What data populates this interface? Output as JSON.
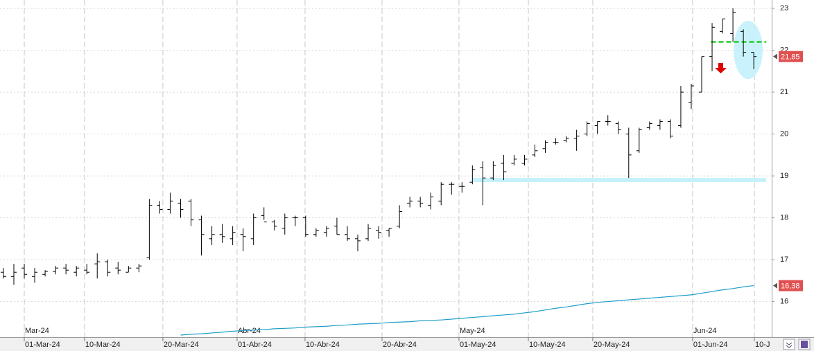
{
  "chart_data": {
    "type": "ohlc",
    "xlim": [
      -0.33,
      73.72
    ],
    "ylim": [
      15.15,
      23.2
    ],
    "yticks": [
      16,
      17,
      18,
      19,
      20,
      21,
      22,
      23
    ],
    "xticks": [
      {
        "value": 2.0,
        "label": "01-Mar-24"
      },
      {
        "value": 7.78,
        "label": "10-Mar-24"
      },
      {
        "value": 15.3,
        "label": "20-Mar-24"
      },
      {
        "value": 22.42,
        "label": "01-Abr-24"
      },
      {
        "value": 28.94,
        "label": "10-Abr-24"
      },
      {
        "value": 36.33,
        "label": "20-Abr-24"
      },
      {
        "value": 43.71,
        "label": "01-May-24"
      },
      {
        "value": 50.37,
        "label": "10-May-24"
      },
      {
        "value": 56.55,
        "label": "20-May-24"
      },
      {
        "value": 66.13,
        "label": "01-Jun-24"
      },
      {
        "value": 72.06,
        "label": "10-J"
      }
    ],
    "month_labels": [
      {
        "value": 2.0,
        "label": "Mar-24"
      },
      {
        "value": 22.42,
        "label": "Abr-24"
      },
      {
        "value": 43.71,
        "label": "May-24"
      },
      {
        "value": 66.13,
        "label": "Jun-24"
      }
    ],
    "grid": true,
    "color": "#000000",
    "ohlc": {
      "open": [
        16.7,
        16.6,
        16.8,
        16.6,
        16.65,
        16.72,
        16.8,
        16.7,
        16.75,
        16.9,
        16.95,
        16.8,
        16.7,
        16.8,
        17.05,
        18.3,
        18.2,
        18.35,
        18.4,
        17.95,
        17.5,
        17.6,
        17.5,
        17.6,
        17.5,
        18.05,
        17.9,
        17.75,
        18.0,
        18.0,
        17.6,
        17.65,
        17.8,
        17.6,
        17.5,
        17.5,
        17.7,
        17.7,
        17.8,
        18.35,
        18.4,
        18.3,
        18.4,
        18.8,
        18.75,
        18.85,
        19.2,
        18.95,
        19.3,
        19.3,
        19.3,
        19.5,
        19.65,
        19.8,
        19.85,
        19.9,
        20.0,
        20.2,
        20.3,
        20.25,
        20.0,
        19.6,
        20.15,
        20.2,
        20.3,
        20.2,
        20.75,
        21.0,
        21.85,
        22.45,
        22.4,
        22.45,
        21.95
      ],
      "high": [
        16.8,
        16.9,
        16.9,
        16.8,
        16.75,
        16.85,
        16.9,
        16.85,
        16.9,
        17.15,
        17.0,
        16.95,
        16.85,
        16.9,
        18.45,
        18.4,
        18.6,
        18.45,
        18.45,
        18.05,
        17.8,
        17.85,
        17.8,
        17.75,
        18.1,
        18.25,
        17.95,
        18.1,
        18.05,
        18.05,
        17.75,
        17.8,
        18.0,
        17.8,
        17.6,
        17.85,
        17.8,
        17.75,
        18.3,
        18.5,
        18.5,
        18.6,
        18.85,
        18.85,
        18.85,
        19.25,
        19.35,
        19.35,
        19.5,
        19.5,
        19.5,
        19.75,
        19.85,
        19.9,
        19.95,
        20.1,
        20.3,
        20.3,
        20.45,
        20.3,
        20.15,
        20.15,
        20.3,
        20.35,
        20.35,
        21.15,
        21.2,
        21.85,
        22.65,
        22.75,
        23.0,
        22.5,
        21.95
      ],
      "low": [
        16.55,
        16.4,
        16.55,
        16.45,
        16.6,
        16.65,
        16.65,
        16.6,
        16.65,
        16.55,
        16.6,
        16.65,
        16.7,
        16.7,
        17.0,
        18.1,
        18.1,
        18.0,
        17.8,
        17.1,
        17.35,
        17.4,
        17.35,
        17.2,
        17.35,
        17.95,
        17.7,
        17.6,
        17.8,
        17.55,
        17.55,
        17.55,
        17.6,
        17.45,
        17.2,
        17.45,
        17.5,
        17.55,
        17.75,
        18.25,
        18.25,
        18.2,
        18.3,
        18.55,
        18.6,
        18.8,
        18.3,
        18.9,
        18.9,
        19.25,
        19.25,
        19.45,
        19.55,
        19.75,
        19.8,
        19.6,
        19.95,
        20.0,
        20.2,
        20.0,
        18.95,
        19.55,
        20.1,
        20.1,
        19.9,
        20.15,
        20.6,
        21.0,
        21.5,
        22.4,
        22.2,
        21.85,
        21.55
      ],
      "close": [
        16.6,
        16.7,
        16.65,
        16.7,
        16.72,
        16.8,
        16.75,
        16.8,
        16.7,
        16.95,
        16.7,
        16.75,
        16.8,
        16.85,
        18.3,
        18.2,
        18.4,
        18.2,
        17.95,
        17.6,
        17.6,
        17.55,
        17.65,
        17.55,
        18.0,
        17.9,
        17.8,
        18.0,
        18.0,
        17.6,
        17.7,
        17.75,
        17.6,
        17.5,
        17.45,
        17.75,
        17.65,
        17.75,
        18.15,
        18.4,
        18.35,
        18.5,
        18.8,
        18.8,
        18.75,
        19.15,
        18.95,
        19.25,
        19.1,
        19.4,
        19.4,
        19.6,
        19.8,
        19.8,
        19.9,
        19.95,
        20.25,
        20.3,
        20.3,
        20.1,
        19.5,
        20.1,
        20.25,
        20.3,
        19.95,
        21.0,
        21.15,
        21.85,
        22.55,
        22.75,
        22.9,
        21.95,
        21.85
      ]
    },
    "series": [
      {
        "color": "#1e9ec8",
        "values": [
          null,
          null,
          null,
          null,
          null,
          null,
          null,
          null,
          null,
          null,
          null,
          null,
          null,
          null,
          null,
          null,
          null,
          15.2,
          15.22,
          15.23,
          15.25,
          15.27,
          15.29,
          15.31,
          15.32,
          15.33,
          15.35,
          15.36,
          15.37,
          15.39,
          15.4,
          15.41,
          15.43,
          15.44,
          15.46,
          15.47,
          15.48,
          15.5,
          15.51,
          15.52,
          15.54,
          15.55,
          15.56,
          15.58,
          15.6,
          15.62,
          15.64,
          15.66,
          15.68,
          15.7,
          15.73,
          15.76,
          15.8,
          15.84,
          15.87,
          15.91,
          15.95,
          15.98,
          16.0,
          16.02,
          16.04,
          16.06,
          16.08,
          16.1,
          16.12,
          16.14,
          16.16,
          16.2,
          16.24,
          16.28,
          16.31,
          16.35,
          16.38
        ]
      }
    ],
    "levels": [
      {
        "value": 18.9,
        "x": [
          45,
          73.2
        ],
        "color": "#c6f1fa"
      },
      {
        "value": 22.2,
        "x": [
          67.9,
          73.2
        ],
        "color": "#22cc22"
      }
    ],
    "price_labels": [
      {
        "value": 21.85,
        "label": "21,85"
      },
      {
        "value": 16.38,
        "label": "16,38"
      }
    ]
  }
}
